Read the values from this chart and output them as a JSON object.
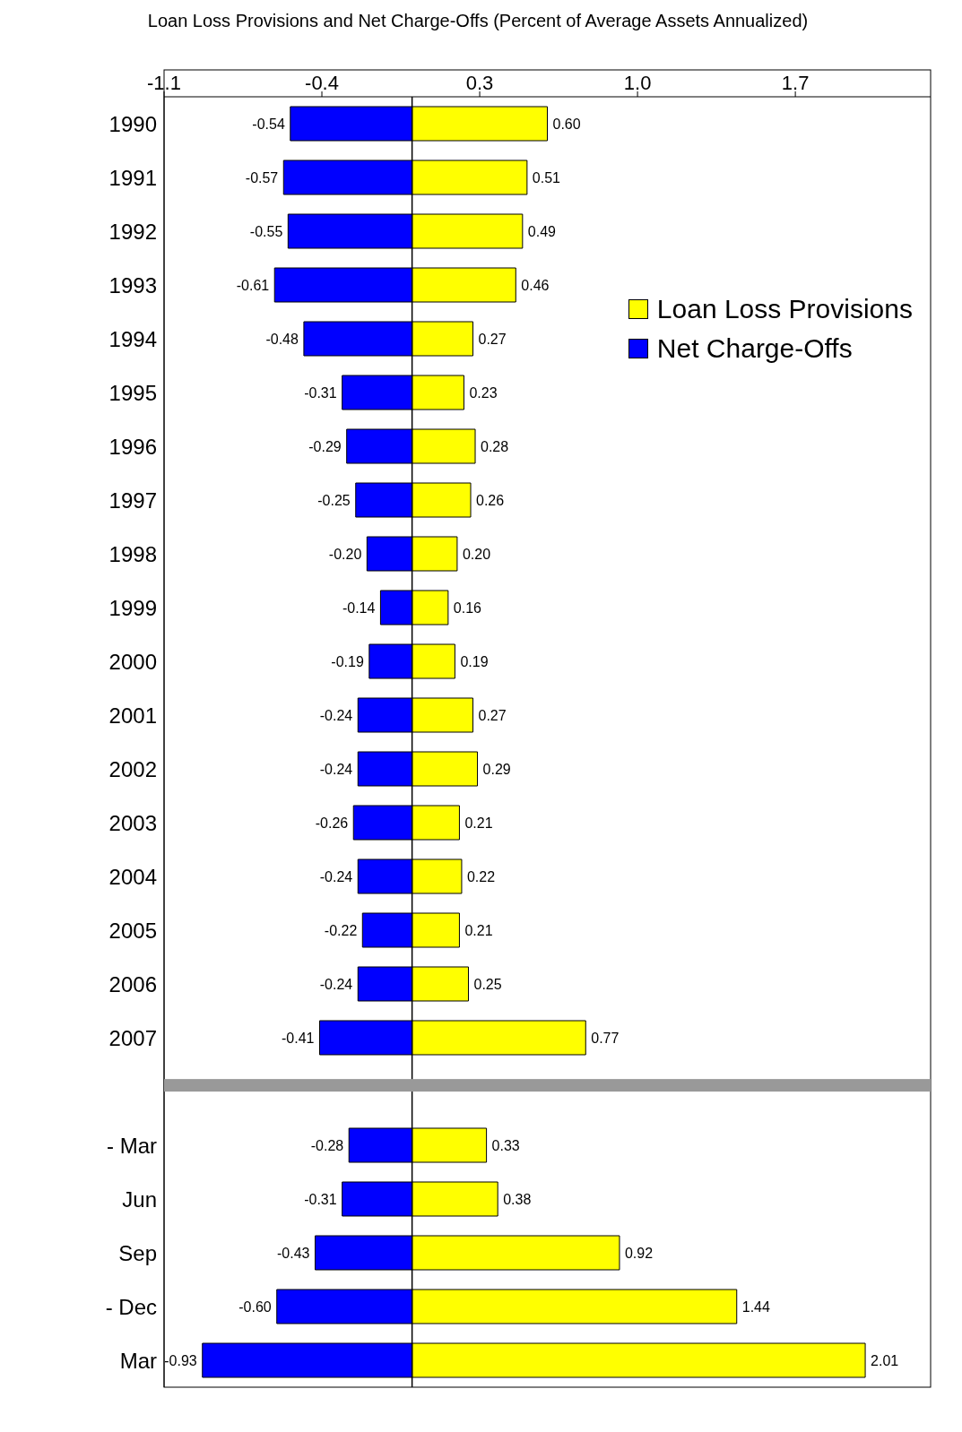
{
  "chart_data": {
    "type": "bar",
    "orientation": "horizontal",
    "title": "Loan Loss Provisions and Net Charge-Offs (Percent of Average Assets Annualized)",
    "categories": [
      "1990",
      "1991",
      "1992",
      "1993",
      "1994",
      "1995",
      "1996",
      "1997",
      "1998",
      "1999",
      "2000",
      "2001",
      "2002",
      "2003",
      "2004",
      "2005",
      "2006",
      "2007",
      null,
      "- Mar",
      "Jun",
      "Sep",
      "- Dec",
      "Mar"
    ],
    "series": [
      {
        "name": "Loan Loss Provisions",
        "color": "#ffff00",
        "values": [
          0.6,
          0.51,
          0.49,
          0.46,
          0.27,
          0.23,
          0.28,
          0.26,
          0.2,
          0.16,
          0.19,
          0.27,
          0.29,
          0.21,
          0.22,
          0.21,
          0.25,
          0.77,
          null,
          0.33,
          0.38,
          0.92,
          1.44,
          2.01
        ],
        "value_labels": [
          "0.60",
          "0.51",
          "0.49",
          "0.46",
          "0.27",
          "0.23",
          "0.28",
          "0.26",
          "0.20",
          "0.16",
          "0.19",
          "0.27",
          "0.29",
          "0.21",
          "0.22",
          "0.21",
          "0.25",
          "0.77",
          null,
          "0.33",
          "0.38",
          "0.92",
          "1.44",
          "2.01"
        ]
      },
      {
        "name": "Net Charge-Offs",
        "color": "#0000ff",
        "values": [
          -0.54,
          -0.57,
          -0.55,
          -0.61,
          -0.48,
          -0.31,
          -0.29,
          -0.25,
          -0.2,
          -0.14,
          -0.19,
          -0.24,
          -0.24,
          -0.26,
          -0.24,
          -0.22,
          -0.24,
          -0.41,
          null,
          -0.28,
          -0.31,
          -0.43,
          -0.6,
          -0.93
        ],
        "value_labels": [
          "-0.54",
          "-0.57",
          "-0.55",
          "-0.61",
          "-0.48",
          "-0.31",
          "-0.29",
          "-0.25",
          "-0.20",
          "-0.14",
          "-0.19",
          "-0.24",
          "-0.24",
          "-0.26",
          "-0.24",
          "-0.22",
          "-0.24",
          "-0.41",
          null,
          "-0.28",
          "-0.31",
          "-0.43",
          "-0.60",
          "-0.93"
        ]
      }
    ],
    "xlim": [
      -1.1,
      2.3
    ],
    "xticks": [
      -1.1,
      -0.4,
      0.3,
      {
        "value": 1,
        "label": "1.0"
      },
      1.7
    ],
    "ref_lines": [
      {
        "axis": "x",
        "value": 0,
        "color": "#000000"
      }
    ],
    "stacked": true,
    "legend": "right"
  }
}
